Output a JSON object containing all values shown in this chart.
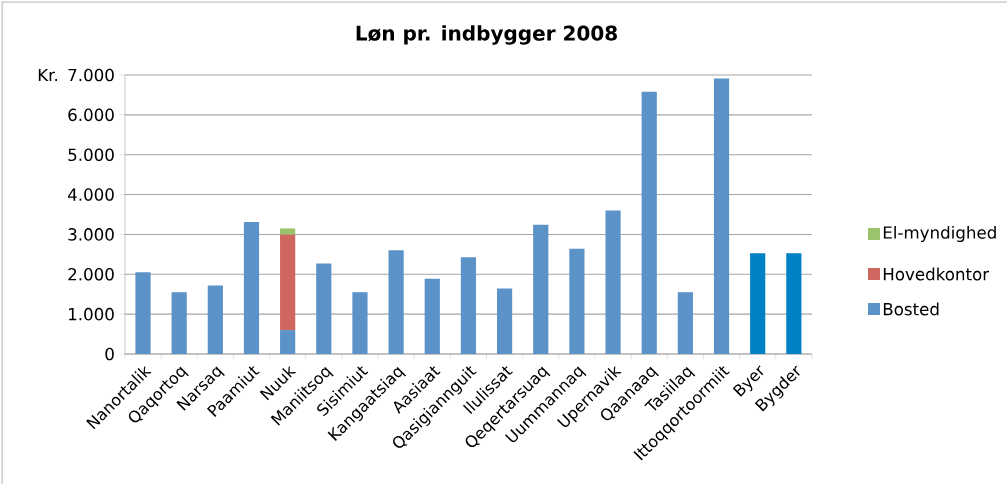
{
  "chart_data": {
    "type": "bar",
    "title": "Løn pr. indbygger 2008",
    "ylabel": "Kr.",
    "stacked": true,
    "categories": [
      "Nanortalik",
      "Qaqortoq",
      "Narsaq",
      "Paamiut",
      "Nuuk",
      "Maniitsoq",
      "Sisimiut",
      "Kangaatsiaq",
      "Aasiaat",
      "Qasigiannguit",
      "Ilulissat",
      "Qeqertarsuaq",
      "Uummannaq",
      "Upernavik",
      "Qaanaaq",
      "Tasiilaq",
      "Ittoqqortoormiit",
      "Byer",
      "Bygder"
    ],
    "series": [
      {
        "name": "Bosted",
        "color": "#5b93c8",
        "colors": [
          "#5b93c8",
          "#5b93c8",
          "#5b93c8",
          "#5b93c8",
          "#5b93c8",
          "#5b93c8",
          "#5b93c8",
          "#5b93c8",
          "#5b93c8",
          "#5b93c8",
          "#5b93c8",
          "#5b93c8",
          "#5b93c8",
          "#5b93c8",
          "#5b93c8",
          "#5b93c8",
          "#5b93c8",
          "#0081c6",
          "#0081c6"
        ],
        "values": [
          2050,
          1550,
          1720,
          3310,
          600,
          2270,
          1550,
          2600,
          1890,
          2430,
          1640,
          3240,
          2640,
          3600,
          6580,
          1550,
          6910,
          2530,
          2530
        ]
      },
      {
        "name": "Hovedkontor",
        "color": "#d0675f",
        "values": [
          null,
          null,
          null,
          null,
          2400,
          null,
          null,
          null,
          null,
          null,
          null,
          null,
          null,
          null,
          null,
          null,
          null,
          null,
          null
        ]
      },
      {
        "name": "El-myndighed",
        "color": "#9bc36b",
        "values": [
          null,
          null,
          null,
          null,
          150,
          null,
          null,
          null,
          null,
          null,
          null,
          null,
          null,
          null,
          null,
          null,
          null,
          null,
          null
        ]
      }
    ],
    "ylim": [
      0,
      7000
    ],
    "yticks": [
      0,
      {
        "value": 1000,
        "label": "1.000"
      },
      {
        "value": 2000,
        "label": "2.000"
      },
      {
        "value": 3000,
        "label": "3.000"
      },
      {
        "value": 4000,
        "label": "4.000"
      },
      {
        "value": 5000,
        "label": "5.000"
      },
      {
        "value": 6000,
        "label": "6.000"
      },
      {
        "value": 7000,
        "label": "7.000"
      }
    ],
    "grid": "y",
    "legend": "right"
  }
}
